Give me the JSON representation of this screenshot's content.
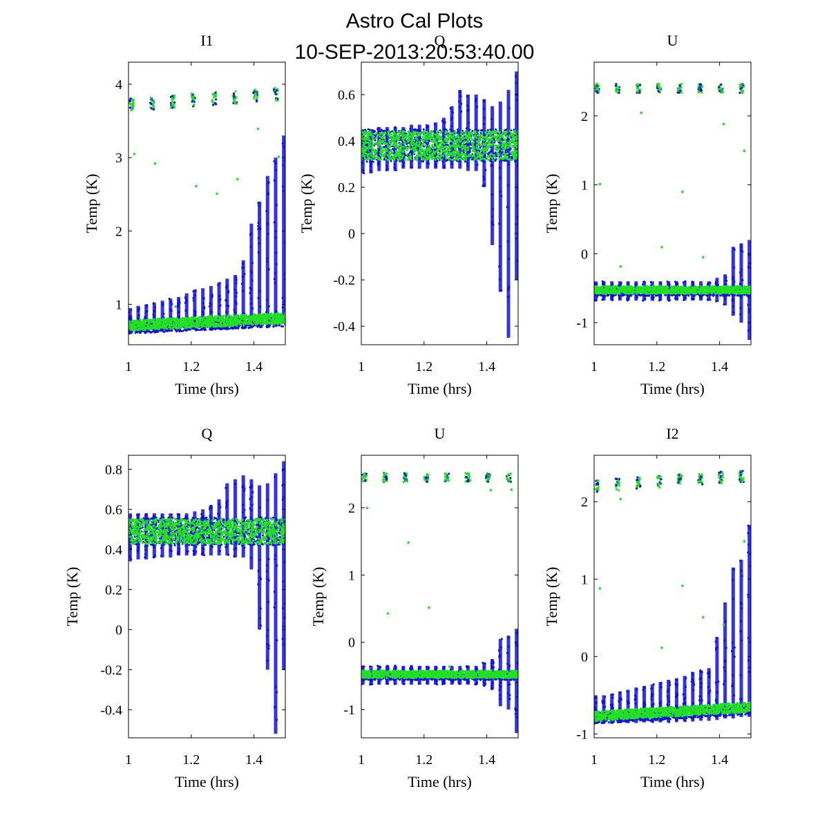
{
  "figure": {
    "title_line1": "Astro Cal Plots",
    "title_line2": "10-SEP-2013:20:53:40.00"
  },
  "colors": {
    "series_a": "#1010e0",
    "series_b": "#22e022",
    "axes": "#000000"
  },
  "chart_data": [
    {
      "type": "scatter",
      "title": "I1",
      "xlabel": "Time (hrs)",
      "ylabel": "Temp (K)",
      "xlim": [
        1,
        1.5
      ],
      "ylim": [
        0.45,
        4.3
      ],
      "xticks": [
        1,
        1.2,
        1.4
      ],
      "xtick_labels": [
        "1",
        "1.2",
        "1.4"
      ],
      "yticks": [
        1,
        2,
        3,
        4
      ],
      "ytick_labels": [
        "1",
        "2",
        "3",
        "4"
      ],
      "pattern": "drift",
      "high_level": 3.72,
      "high_slope": 0.3,
      "low_start": 0.68,
      "low_end": 0.78,
      "noise": 0.08,
      "spike_mins": [
        0.62,
        0.62,
        0.62,
        0.63,
        0.63,
        0.64,
        0.64,
        0.64,
        0.65,
        0.65,
        0.66,
        0.66,
        0.67,
        0.67,
        0.68,
        0.68,
        0.7,
        0.72,
        0.73,
        0.74
      ],
      "spike_maxs": [
        0.95,
        0.98,
        1.0,
        1.02,
        1.05,
        1.08,
        1.1,
        1.15,
        1.2,
        1.22,
        1.25,
        1.3,
        1.35,
        1.4,
        1.6,
        2.1,
        2.4,
        2.75,
        3.0,
        3.3
      ]
    },
    {
      "type": "scatter",
      "title": "Q",
      "xlabel": "Time (hrs)",
      "ylabel": "Temp (K)",
      "xlim": [
        1,
        1.5
      ],
      "ylim": [
        -0.48,
        0.74
      ],
      "xticks": [
        1,
        1.2,
        1.4
      ],
      "xtick_labels": [
        "1",
        "1.2",
        "1.4"
      ],
      "yticks": [
        -0.4,
        -0.2,
        0,
        0.2,
        0.4,
        0.6
      ],
      "ytick_labels": [
        "-0.4",
        "-0.2",
        "0",
        "0.2",
        "0.4",
        "0.6"
      ],
      "pattern": "band",
      "band_center": 0.38,
      "band_half": 0.07,
      "spike_mins": [
        0.26,
        0.26,
        0.27,
        0.27,
        0.27,
        0.28,
        0.28,
        0.28,
        0.28,
        0.28,
        0.28,
        0.28,
        0.28,
        0.27,
        0.27,
        0.2,
        -0.05,
        -0.25,
        -0.45,
        -0.2
      ],
      "spike_maxs": [
        0.45,
        0.45,
        0.46,
        0.46,
        0.46,
        0.46,
        0.47,
        0.47,
        0.47,
        0.48,
        0.5,
        0.55,
        0.62,
        0.6,
        0.6,
        0.58,
        0.55,
        0.57,
        0.62,
        0.7
      ]
    },
    {
      "type": "scatter",
      "title": "U",
      "xlabel": "Time (hrs)",
      "ylabel": "Temp (K)",
      "xlim": [
        1,
        1.5
      ],
      "ylim": [
        -1.32,
        2.78
      ],
      "xticks": [
        1,
        1.2,
        1.4
      ],
      "xtick_labels": [
        "1",
        "1.2",
        "1.4"
      ],
      "yticks": [
        -1,
        0,
        1,
        2
      ],
      "ytick_labels": [
        "-1",
        "0",
        "1",
        "2"
      ],
      "pattern": "drift",
      "high_level": 2.4,
      "high_slope": 0.0,
      "low_start": -0.55,
      "low_end": -0.55,
      "noise": 0.06,
      "spike_mins": [
        -0.68,
        -0.68,
        -0.68,
        -0.68,
        -0.68,
        -0.68,
        -0.68,
        -0.68,
        -0.68,
        -0.68,
        -0.68,
        -0.68,
        -0.68,
        -0.68,
        -0.68,
        -0.7,
        -0.75,
        -0.9,
        -1.0,
        -1.25
      ],
      "spike_maxs": [
        -0.4,
        -0.4,
        -0.4,
        -0.4,
        -0.4,
        -0.4,
        -0.4,
        -0.4,
        -0.4,
        -0.4,
        -0.4,
        -0.4,
        -0.4,
        -0.4,
        -0.4,
        -0.35,
        -0.3,
        0.1,
        0.15,
        0.2
      ]
    },
    {
      "type": "scatter",
      "title": "Q",
      "xlabel": "Time (hrs)",
      "ylabel": "Temp (K)",
      "xlim": [
        1,
        1.5
      ],
      "ylim": [
        -0.54,
        0.87
      ],
      "xticks": [
        1,
        1.2,
        1.4
      ],
      "xtick_labels": [
        "1",
        "1.2",
        "1.4"
      ],
      "yticks": [
        -0.4,
        -0.2,
        0,
        0.2,
        0.4,
        0.6,
        0.8
      ],
      "ytick_labels": [
        "-0.4",
        "-0.2",
        "0",
        "0.2",
        "0.4",
        "0.6",
        "0.8"
      ],
      "pattern": "band",
      "band_center": 0.49,
      "band_half": 0.07,
      "spike_mins": [
        0.34,
        0.35,
        0.35,
        0.36,
        0.36,
        0.36,
        0.37,
        0.37,
        0.37,
        0.37,
        0.37,
        0.37,
        0.37,
        0.36,
        0.36,
        0.3,
        0.0,
        -0.2,
        -0.52,
        -0.2
      ],
      "spike_maxs": [
        0.58,
        0.58,
        0.58,
        0.58,
        0.58,
        0.58,
        0.58,
        0.58,
        0.59,
        0.6,
        0.62,
        0.65,
        0.73,
        0.75,
        0.77,
        0.75,
        0.72,
        0.73,
        0.78,
        0.84
      ]
    },
    {
      "type": "scatter",
      "title": "U",
      "xlabel": "Time (hrs)",
      "ylabel": "Temp (K)",
      "xlim": [
        1,
        1.5
      ],
      "ylim": [
        -1.42,
        2.78
      ],
      "xticks": [
        1,
        1.2,
        1.4
      ],
      "xtick_labels": [
        "1",
        "1.2",
        "1.4"
      ],
      "yticks": [
        -1,
        0,
        1,
        2
      ],
      "ytick_labels": [
        "-1",
        "0",
        "1",
        "2"
      ],
      "pattern": "drift",
      "high_level": 2.45,
      "high_slope": 0.0,
      "low_start": -0.5,
      "low_end": -0.5,
      "noise": 0.06,
      "spike_mins": [
        -0.63,
        -0.63,
        -0.63,
        -0.63,
        -0.63,
        -0.63,
        -0.63,
        -0.63,
        -0.63,
        -0.63,
        -0.63,
        -0.63,
        -0.63,
        -0.63,
        -0.63,
        -0.65,
        -0.7,
        -0.95,
        -1.0,
        -1.35
      ],
      "spike_maxs": [
        -0.35,
        -0.35,
        -0.35,
        -0.35,
        -0.35,
        -0.35,
        -0.35,
        -0.35,
        -0.35,
        -0.35,
        -0.35,
        -0.35,
        -0.35,
        -0.35,
        -0.35,
        -0.3,
        -0.25,
        0.05,
        0.1,
        0.2
      ]
    },
    {
      "type": "scatter",
      "title": "I2",
      "xlabel": "Time (hrs)",
      "ylabel": "Temp (K)",
      "xlim": [
        1,
        1.5
      ],
      "ylim": [
        -1.05,
        2.6
      ],
      "xticks": [
        1,
        1.2,
        1.4
      ],
      "xtick_labels": [
        "1",
        "1.2",
        "1.4"
      ],
      "yticks": [
        -1,
        0,
        1,
        2
      ],
      "ytick_labels": [
        "-1",
        "0",
        "1",
        "2"
      ],
      "pattern": "drift",
      "high_level": 2.2,
      "high_slope": 0.28,
      "low_start": -0.8,
      "low_end": -0.68,
      "noise": 0.07,
      "spike_mins": [
        -0.87,
        -0.87,
        -0.87,
        -0.86,
        -0.86,
        -0.86,
        -0.85,
        -0.85,
        -0.85,
        -0.85,
        -0.84,
        -0.84,
        -0.84,
        -0.83,
        -0.83,
        -0.82,
        -0.8,
        -0.8,
        -0.78,
        -0.78
      ],
      "spike_maxs": [
        -0.5,
        -0.5,
        -0.48,
        -0.45,
        -0.43,
        -0.4,
        -0.38,
        -0.36,
        -0.33,
        -0.3,
        -0.28,
        -0.25,
        -0.2,
        -0.18,
        -0.15,
        0.25,
        0.7,
        1.15,
        1.25,
        1.7
      ]
    }
  ]
}
